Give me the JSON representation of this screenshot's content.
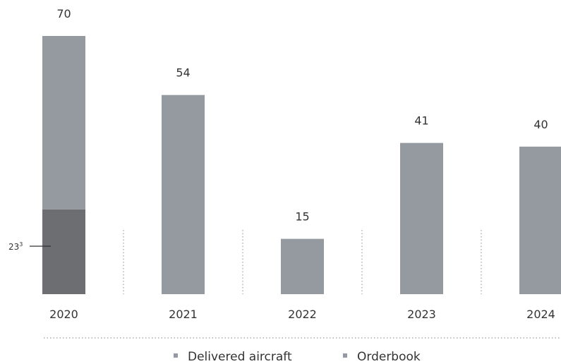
{
  "chart_data": {
    "type": "bar",
    "categories": [
      "2020",
      "2021",
      "2022",
      "2023",
      "2024"
    ],
    "series": [
      {
        "name": "Delivered aircraft",
        "values": [
          23,
          0,
          0,
          0,
          0
        ],
        "color": "#6d6e72"
      },
      {
        "name": "Orderbook",
        "values": [
          47,
          54,
          15,
          41,
          40
        ],
        "color": "#959aa0"
      }
    ],
    "totals": [
      70,
      54,
      15,
      41,
      40
    ],
    "annotation": {
      "base": "23",
      "superscript": "3",
      "category": "2020",
      "value": 23
    },
    "legend_position": "bottom",
    "grid": false
  }
}
